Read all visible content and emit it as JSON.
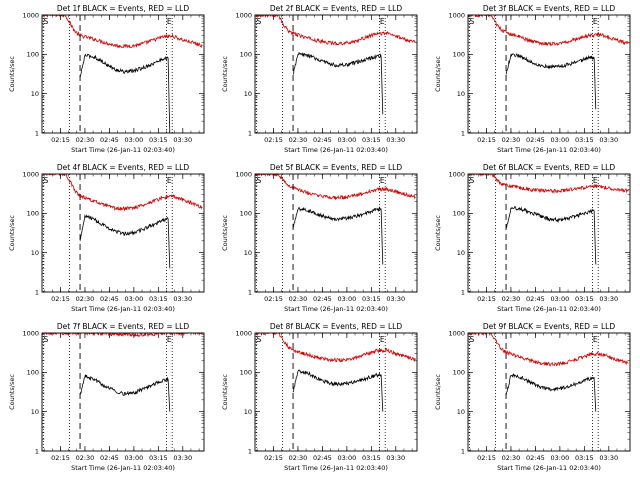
{
  "chart_data": [
    {
      "type": "line",
      "title": "Det 1f BLACK = Events, RED = LLD",
      "xlabel": "Start Time (26-Jan-11 02:03:40)",
      "ylabel": "Counts/sec",
      "yscale": "log",
      "ylim": [
        1,
        1000
      ],
      "xlim": [
        "02:03:40",
        "03:43:00"
      ],
      "xticks": [
        "02:15",
        "02:30",
        "02:45",
        "03:00",
        "03:15",
        "03:30"
      ],
      "yticks": [
        "1",
        "10",
        "100",
        "1000"
      ],
      "markers": {
        "S": "02:04:00",
        "E": "03:21:30"
      },
      "vlines_dotted": [
        "02:04:30",
        "02:20:30",
        "03:20:00",
        "03:23:30"
      ],
      "vline_dashed": "02:27:00",
      "series": [
        {
          "name": "RED = LLD",
          "color": "#d00000",
          "time": [
            "02:04",
            "02:18",
            "02:21",
            "02:24",
            "02:27",
            "02:30",
            "02:36",
            "02:42",
            "02:48",
            "02:54",
            "03:00",
            "03:06",
            "03:12",
            "03:18",
            "03:24",
            "03:30",
            "03:36",
            "03:42"
          ],
          "values": [
            1000,
            1000,
            600,
            380,
            300,
            280,
            240,
            200,
            170,
            160,
            165,
            190,
            230,
            280,
            290,
            230,
            200,
            165
          ]
        },
        {
          "name": "BLACK = Events",
          "color": "#000000",
          "time": [
            "02:27",
            "02:30",
            "02:36",
            "02:42",
            "02:48",
            "02:54",
            "03:00",
            "03:06",
            "03:12",
            "03:18",
            "03:21",
            "03:22"
          ],
          "values": [
            25,
            95,
            85,
            60,
            42,
            36,
            38,
            46,
            58,
            78,
            80,
            1
          ]
        }
      ]
    },
    {
      "type": "line",
      "title": "Det 2f BLACK = Events, RED = LLD",
      "xlabel": "Start Time (26-Jan-11 02:03:40)",
      "ylabel": "Counts/sec",
      "yscale": "log",
      "ylim": [
        1,
        1000
      ],
      "xlim": [
        "02:03:40",
        "03:43:00"
      ],
      "xticks": [
        "02:15",
        "02:30",
        "02:45",
        "03:00",
        "03:15",
        "03:30"
      ],
      "yticks": [
        "1",
        "10",
        "100",
        "1000"
      ],
      "markers": {
        "S": "02:04:00",
        "E": "03:21:30"
      },
      "vlines_dotted": [
        "02:04:30",
        "02:20:30",
        "03:20:00",
        "03:23:30"
      ],
      "vline_dashed": "02:27:00",
      "series": [
        {
          "name": "RED = LLD",
          "color": "#d00000",
          "time": [
            "02:04",
            "02:18",
            "02:21",
            "02:24",
            "02:27",
            "02:30",
            "02:36",
            "02:42",
            "02:48",
            "02:54",
            "03:00",
            "03:06",
            "03:12",
            "03:18",
            "03:24",
            "03:30",
            "03:36",
            "03:42"
          ],
          "values": [
            1000,
            1000,
            560,
            400,
            340,
            310,
            260,
            220,
            200,
            190,
            195,
            220,
            270,
            330,
            350,
            290,
            240,
            210
          ]
        },
        {
          "name": "BLACK = Events",
          "color": "#000000",
          "time": [
            "02:27",
            "02:30",
            "02:36",
            "02:42",
            "02:48",
            "02:54",
            "03:00",
            "03:06",
            "03:12",
            "03:18",
            "03:21",
            "03:22"
          ],
          "values": [
            30,
            100,
            95,
            75,
            60,
            52,
            54,
            62,
            75,
            88,
            90,
            3
          ]
        }
      ]
    },
    {
      "type": "line",
      "title": "Det 3f BLACK = Events, RED = LLD",
      "xlabel": "Start Time (26-Jan-11 02:03:40)",
      "ylabel": "Counts/sec",
      "yscale": "log",
      "ylim": [
        1,
        1000
      ],
      "xlim": [
        "02:03:40",
        "03:43:00"
      ],
      "xticks": [
        "02:15",
        "02:30",
        "02:45",
        "03:00",
        "03:15",
        "03:30"
      ],
      "yticks": [
        "1",
        "10",
        "100",
        "1000"
      ],
      "markers": {
        "S": "02:04:00",
        "E": "03:21:30"
      },
      "vlines_dotted": [
        "02:04:30",
        "02:20:30",
        "03:20:00",
        "03:23:30"
      ],
      "vline_dashed": "02:27:00",
      "series": [
        {
          "name": "RED = LLD",
          "color": "#d00000",
          "time": [
            "02:04",
            "02:18",
            "02:21",
            "02:24",
            "02:27",
            "02:30",
            "02:36",
            "02:42",
            "02:48",
            "02:54",
            "03:00",
            "03:06",
            "03:12",
            "03:18",
            "03:24",
            "03:30",
            "03:36",
            "03:42"
          ],
          "values": [
            1000,
            1000,
            600,
            420,
            360,
            330,
            270,
            220,
            195,
            185,
            190,
            215,
            260,
            300,
            320,
            270,
            220,
            190
          ]
        },
        {
          "name": "BLACK = Events",
          "color": "#000000",
          "time": [
            "02:27",
            "02:30",
            "02:36",
            "02:42",
            "02:48",
            "02:54",
            "03:00",
            "03:06",
            "03:12",
            "03:18",
            "03:21",
            "03:22"
          ],
          "values": [
            30,
            100,
            90,
            65,
            52,
            48,
            50,
            56,
            68,
            82,
            84,
            4
          ]
        }
      ]
    },
    {
      "type": "line",
      "title": "Det 4f BLACK = Events, RED = LLD",
      "xlabel": "Start Time (26-Jan-11 02:03:40)",
      "ylabel": "Counts/sec",
      "yscale": "log",
      "ylim": [
        1,
        1000
      ],
      "xlim": [
        "02:03:40",
        "03:43:00"
      ],
      "xticks": [
        "02:15",
        "02:30",
        "02:45",
        "03:00",
        "03:15",
        "03:30"
      ],
      "yticks": [
        "1",
        "10",
        "100",
        "1000"
      ],
      "markers": {
        "S": "02:04:00",
        "E": "03:21:30"
      },
      "vlines_dotted": [
        "02:04:30",
        "02:20:30",
        "03:20:00",
        "03:23:30"
      ],
      "vline_dashed": "02:27:00",
      "series": [
        {
          "name": "RED = LLD",
          "color": "#d00000",
          "time": [
            "02:04",
            "02:18",
            "02:21",
            "02:24",
            "02:27",
            "02:30",
            "02:36",
            "02:42",
            "02:48",
            "02:54",
            "03:00",
            "03:06",
            "03:12",
            "03:18",
            "03:24",
            "03:30",
            "03:36",
            "03:42"
          ],
          "values": [
            1000,
            1000,
            620,
            380,
            280,
            250,
            200,
            160,
            135,
            130,
            140,
            165,
            205,
            250,
            270,
            220,
            180,
            140
          ]
        },
        {
          "name": "BLACK = Events",
          "color": "#000000",
          "time": [
            "02:27",
            "02:30",
            "02:36",
            "02:42",
            "02:48",
            "02:54",
            "03:00",
            "03:06",
            "03:12",
            "03:18",
            "03:21",
            "03:22"
          ],
          "values": [
            20,
            85,
            70,
            48,
            36,
            30,
            32,
            40,
            52,
            68,
            72,
            4
          ]
        }
      ]
    },
    {
      "type": "line",
      "title": "Det 5f BLACK = Events, RED = LLD",
      "xlabel": "Start Time (26-Jan-11 02:03:40)",
      "ylabel": "Counts/sec",
      "yscale": "log",
      "ylim": [
        1,
        1000
      ],
      "xlim": [
        "02:03:40",
        "03:43:00"
      ],
      "xticks": [
        "02:15",
        "02:30",
        "02:45",
        "03:00",
        "03:15",
        "03:30"
      ],
      "yticks": [
        "1",
        "10",
        "100",
        "1000"
      ],
      "markers": {
        "S": "02:04:00",
        "E": "03:21:30"
      },
      "vlines_dotted": [
        "02:04:30",
        "02:20:30",
        "03:20:00",
        "03:23:30"
      ],
      "vline_dashed": "02:27:00",
      "series": [
        {
          "name": "RED = LLD",
          "color": "#d00000",
          "time": [
            "02:04",
            "02:18",
            "02:21",
            "02:24",
            "02:27",
            "02:30",
            "02:36",
            "02:42",
            "02:48",
            "02:54",
            "03:00",
            "03:06",
            "03:12",
            "03:18",
            "03:24",
            "03:30",
            "03:36",
            "03:42"
          ],
          "values": [
            1000,
            1000,
            700,
            520,
            440,
            400,
            330,
            280,
            260,
            250,
            255,
            290,
            340,
            400,
            420,
            360,
            300,
            260
          ]
        },
        {
          "name": "BLACK = Events",
          "color": "#000000",
          "time": [
            "02:27",
            "02:30",
            "02:36",
            "02:42",
            "02:48",
            "02:54",
            "03:00",
            "03:06",
            "03:12",
            "03:18",
            "03:21",
            "03:22"
          ],
          "values": [
            40,
            130,
            120,
            95,
            78,
            72,
            75,
            85,
            100,
            125,
            130,
            5
          ]
        }
      ]
    },
    {
      "type": "line",
      "title": "Det 6f BLACK = Events, RED = LLD",
      "xlabel": "Start Time (26-Jan-11 02:03:40)",
      "ylabel": "Counts/sec",
      "yscale": "log",
      "ylim": [
        1,
        1000
      ],
      "xlim": [
        "02:03:40",
        "03:43:00"
      ],
      "xticks": [
        "02:15",
        "02:30",
        "02:45",
        "03:00",
        "03:15",
        "03:30"
      ],
      "yticks": [
        "1",
        "10",
        "100",
        "1000"
      ],
      "markers": {
        "S": "02:04:00",
        "E": "03:21:30"
      },
      "vlines_dotted": [
        "02:04:30",
        "02:20:30",
        "03:20:00",
        "03:23:30"
      ],
      "vline_dashed": "02:27:00",
      "series": [
        {
          "name": "RED = LLD",
          "color": "#d00000",
          "time": [
            "02:04",
            "02:18",
            "02:21",
            "02:24",
            "02:27",
            "02:30",
            "02:36",
            "02:42",
            "02:48",
            "02:54",
            "03:00",
            "03:06",
            "03:12",
            "03:18",
            "03:24",
            "03:30",
            "03:36",
            "03:42"
          ],
          "values": [
            1000,
            1000,
            750,
            580,
            520,
            490,
            440,
            400,
            380,
            370,
            375,
            400,
            430,
            470,
            480,
            440,
            400,
            370
          ]
        },
        {
          "name": "BLACK = Events",
          "color": "#000000",
          "time": [
            "02:27",
            "02:30",
            "02:36",
            "02:42",
            "02:48",
            "02:54",
            "03:00",
            "03:06",
            "03:12",
            "03:18",
            "03:21",
            "03:22"
          ],
          "values": [
            40,
            140,
            130,
            105,
            85,
            70,
            68,
            75,
            90,
            110,
            115,
            5
          ]
        }
      ]
    },
    {
      "type": "line",
      "title": "Det 7f BLACK = Events, RED = LLD",
      "xlabel": "Start Time (26-Jan-11 02:03:40)",
      "ylabel": "Counts/sec",
      "yscale": "log",
      "ylim": [
        1,
        1000
      ],
      "xlim": [
        "02:03:40",
        "03:43:00"
      ],
      "xticks": [
        "02:15",
        "02:30",
        "02:45",
        "03:00",
        "03:15",
        "03:30"
      ],
      "yticks": [
        "1",
        "10",
        "100",
        "1000"
      ],
      "markers": {
        "S": "02:04:00",
        "E": "03:21:30"
      },
      "vlines_dotted": [
        "02:04:30",
        "02:20:30",
        "03:20:00",
        "03:23:30"
      ],
      "vline_dashed": "02:27:00",
      "series": [
        {
          "name": "RED = LLD",
          "color": "#d00000",
          "time": [
            "02:04",
            "02:30",
            "02:45",
            "03:00",
            "03:15",
            "03:30",
            "03:42"
          ],
          "values": [
            1000,
            1000,
            950,
            900,
            950,
            1000,
            1000
          ]
        },
        {
          "name": "BLACK = Events",
          "color": "#000000",
          "time": [
            "02:27",
            "02:30",
            "02:36",
            "02:42",
            "02:48",
            "02:54",
            "03:00",
            "03:06",
            "03:12",
            "03:18",
            "03:21",
            "03:22"
          ],
          "values": [
            25,
            80,
            65,
            45,
            35,
            28,
            30,
            38,
            50,
            62,
            66,
            10
          ]
        }
      ]
    },
    {
      "type": "line",
      "title": "Det 8f BLACK = Events, RED = LLD",
      "xlabel": "Start Time (26-Jan-11 02:03:40)",
      "ylabel": "Counts/sec",
      "yscale": "log",
      "ylim": [
        1,
        1000
      ],
      "xlim": [
        "02:03:40",
        "03:43:00"
      ],
      "xticks": [
        "02:15",
        "02:30",
        "02:45",
        "03:00",
        "03:15",
        "03:30"
      ],
      "yticks": [
        "1",
        "10",
        "100",
        "1000"
      ],
      "markers": {
        "S": "02:04:00",
        "E": "03:21:30"
      },
      "vlines_dotted": [
        "02:04:30",
        "02:20:30",
        "03:20:00",
        "03:23:30"
      ],
      "vline_dashed": "02:27:00",
      "series": [
        {
          "name": "RED = LLD",
          "color": "#d00000",
          "time": [
            "02:04",
            "02:18",
            "02:21",
            "02:24",
            "02:27",
            "02:30",
            "02:36",
            "02:42",
            "02:48",
            "02:54",
            "03:00",
            "03:06",
            "03:12",
            "03:18",
            "03:24",
            "03:30",
            "03:36",
            "03:42"
          ],
          "values": [
            1000,
            1000,
            650,
            450,
            360,
            330,
            280,
            240,
            215,
            205,
            210,
            240,
            290,
            350,
            370,
            300,
            250,
            210
          ]
        },
        {
          "name": "BLACK = Events",
          "color": "#000000",
          "time": [
            "02:27",
            "02:30",
            "02:36",
            "02:42",
            "02:48",
            "02:54",
            "03:00",
            "03:06",
            "03:12",
            "03:18",
            "03:21",
            "03:22"
          ],
          "values": [
            30,
            110,
            95,
            70,
            55,
            50,
            52,
            58,
            70,
            85,
            88,
            10
          ]
        }
      ]
    },
    {
      "type": "line",
      "title": "Det 9f BLACK = Events, RED = LLD",
      "xlabel": "Start Time (26-Jan-11 02:03:40)",
      "ylabel": "Counts/sec",
      "yscale": "log",
      "ylim": [
        1,
        1000
      ],
      "xlim": [
        "02:03:40",
        "03:43:00"
      ],
      "xticks": [
        "02:15",
        "02:30",
        "02:45",
        "03:00",
        "03:15",
        "03:30"
      ],
      "yticks": [
        "1",
        "10",
        "100",
        "1000"
      ],
      "markers": {
        "S": "02:04:00",
        "E": "03:21:30"
      },
      "vlines_dotted": [
        "02:04:30",
        "02:20:30",
        "03:20:00",
        "03:23:30"
      ],
      "vline_dashed": "02:27:00",
      "series": [
        {
          "name": "RED = LLD",
          "color": "#d00000",
          "time": [
            "02:04",
            "02:18",
            "02:21",
            "02:24",
            "02:27",
            "02:30",
            "02:36",
            "02:42",
            "02:48",
            "02:54",
            "03:00",
            "03:06",
            "03:12",
            "03:18",
            "03:24",
            "03:30",
            "03:36",
            "03:42"
          ],
          "values": [
            1000,
            1000,
            600,
            400,
            320,
            290,
            240,
            200,
            170,
            160,
            165,
            190,
            230,
            280,
            300,
            250,
            200,
            170
          ]
        },
        {
          "name": "BLACK = Events",
          "color": "#000000",
          "time": [
            "02:27",
            "02:30",
            "02:36",
            "02:42",
            "02:48",
            "02:54",
            "03:00",
            "03:06",
            "03:12",
            "03:18",
            "03:21",
            "03:22"
          ],
          "values": [
            25,
            85,
            75,
            55,
            42,
            36,
            38,
            45,
            55,
            68,
            72,
            10
          ]
        }
      ]
    }
  ]
}
